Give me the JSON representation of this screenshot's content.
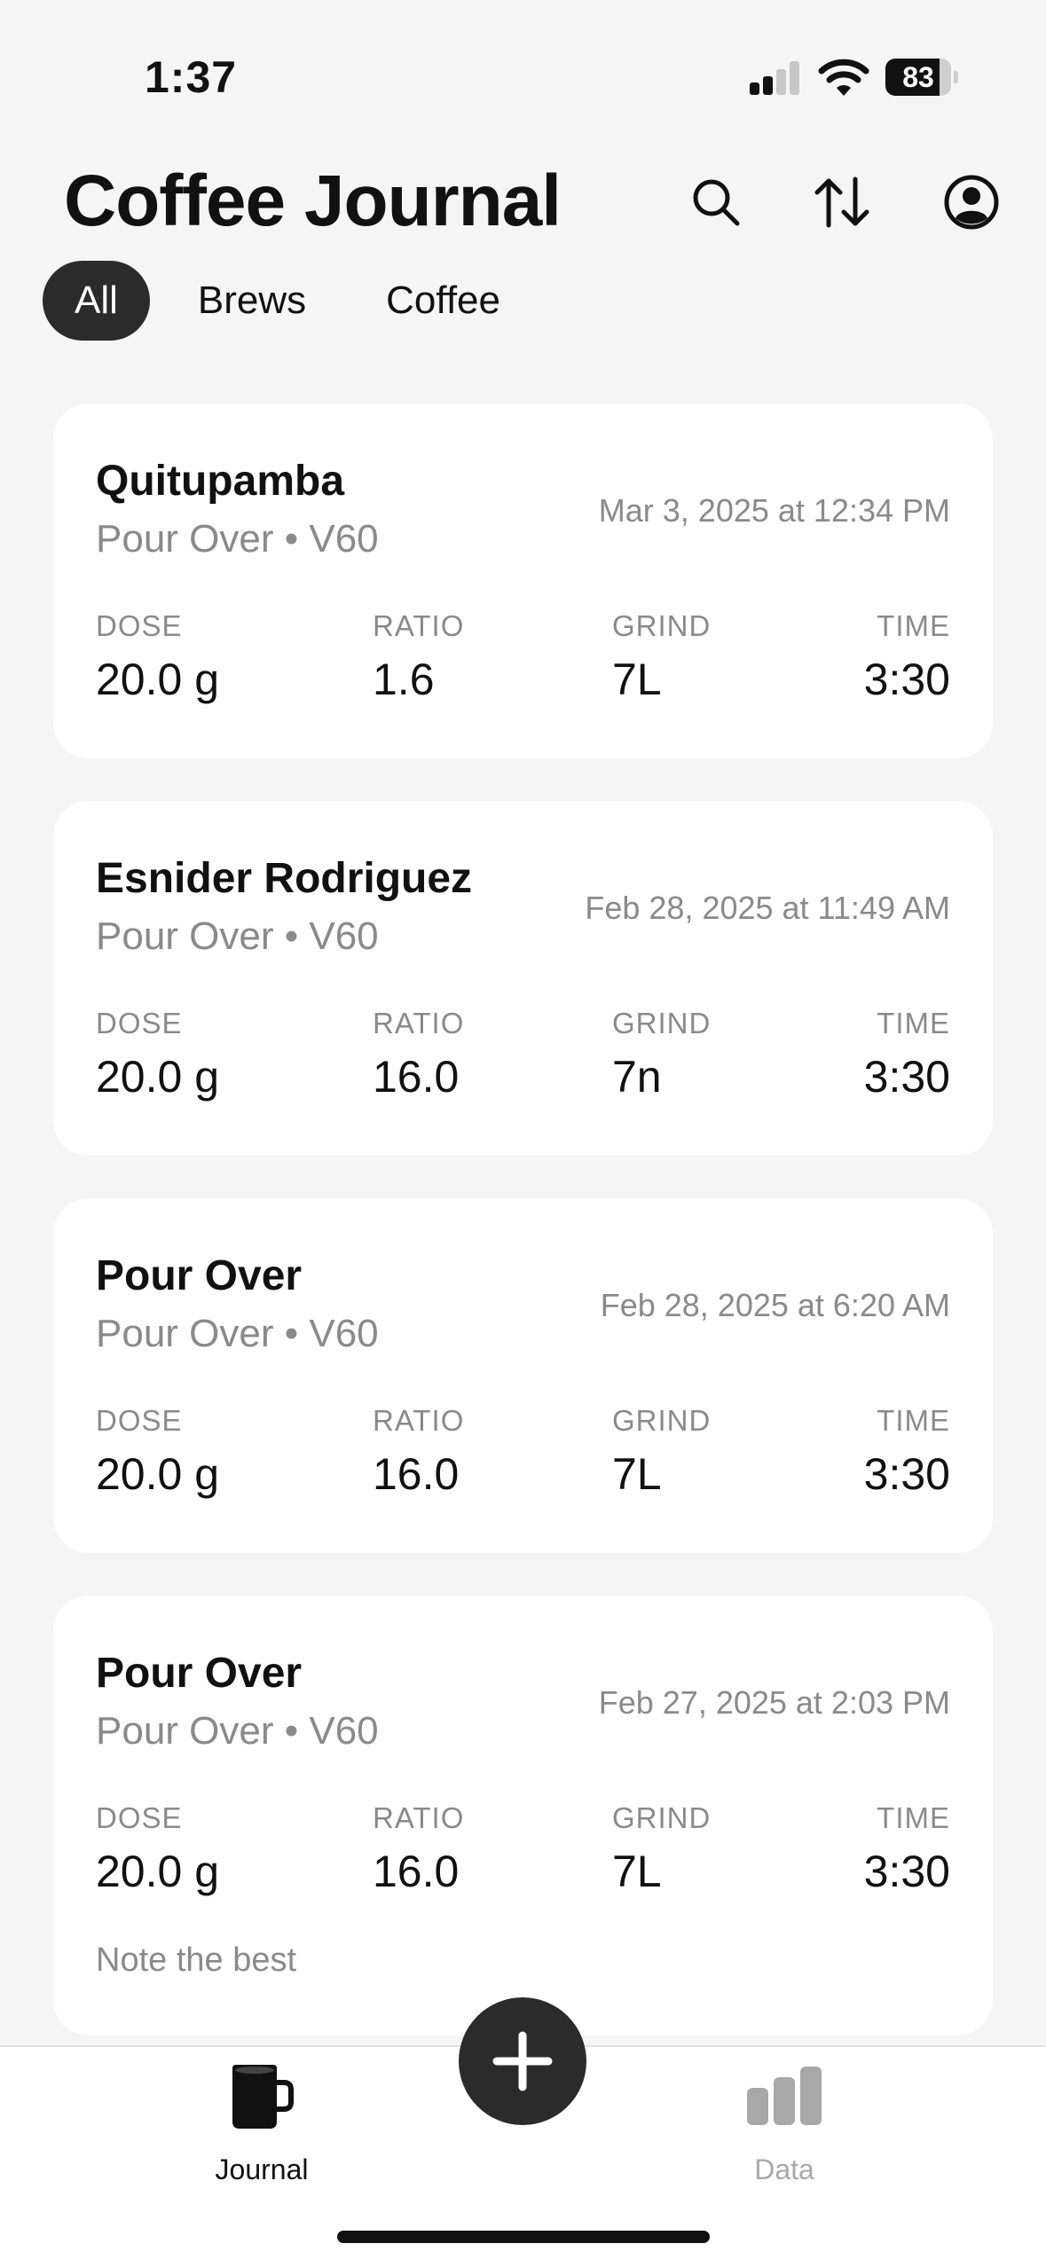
{
  "status_bar": {
    "time": "1:37",
    "battery": "83",
    "battery_level": 0.83
  },
  "header": {
    "title": "Coffee Journal",
    "icons": [
      "search-icon",
      "sort-icon",
      "profile-icon"
    ]
  },
  "filters": {
    "tabs": [
      {
        "label": "All",
        "active": true
      },
      {
        "label": "Brews",
        "active": false
      },
      {
        "label": "Coffee",
        "active": false
      }
    ]
  },
  "stat_labels": {
    "dose": "DOSE",
    "ratio": "RATIO",
    "grind": "GRIND",
    "time": "TIME"
  },
  "entries": [
    {
      "title": "Quitupamba",
      "subtitle": "Pour Over • V60",
      "date": "Mar 3, 2025 at 12:34 PM",
      "dose": "20.0 g",
      "ratio": "1.6",
      "grind": "7L",
      "time": "3:30"
    },
    {
      "title": "Esnider Rodriguez",
      "subtitle": "Pour Over • V60",
      "date": "Feb 28, 2025 at 11:49 AM",
      "dose": "20.0 g",
      "ratio": "16.0",
      "grind": "7n",
      "time": "3:30"
    },
    {
      "title": "Pour Over",
      "subtitle": "Pour Over • V60",
      "date": "Feb 28, 2025 at 6:20 AM",
      "dose": "20.0 g",
      "ratio": "16.0",
      "grind": "7L",
      "time": "3:30"
    },
    {
      "title": "Pour Over",
      "subtitle": "Pour Over • V60",
      "date": "Feb 27, 2025 at 2:03 PM",
      "dose": "20.0 g",
      "ratio": "16.0",
      "grind": "7L",
      "time": "3:30",
      "note": "Note the best"
    }
  ],
  "tabbar": {
    "journal_label": "Journal",
    "data_label": "Data",
    "active": "journal",
    "colors": {
      "active": "#111111",
      "inactive": "#a8a8a8"
    }
  }
}
